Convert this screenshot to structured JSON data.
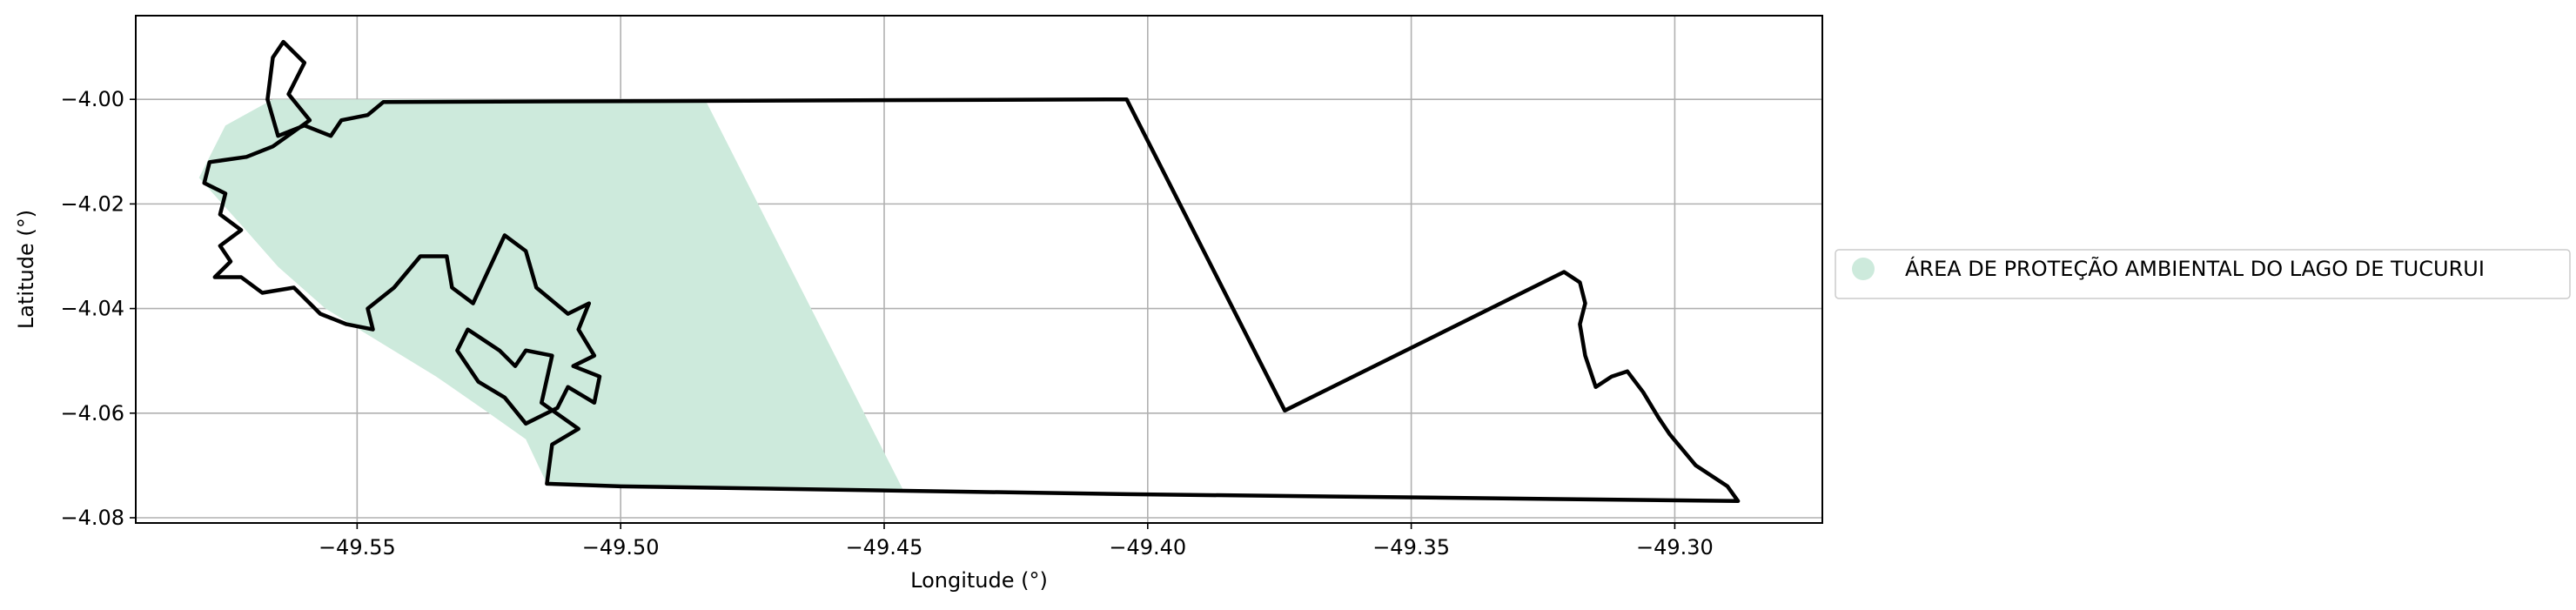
{
  "chart_data": {
    "type": "map",
    "x_axis": {
      "label": "Longitude (°)",
      "range": [
        -49.592,
        -49.272
      ],
      "ticks": [
        -49.55,
        -49.5,
        -49.45,
        -49.4,
        -49.35,
        -49.3
      ],
      "tick_labels": [
        "−49.55",
        "−49.50",
        "−49.45",
        "−49.40",
        "−49.35",
        "−49.30"
      ]
    },
    "y_axis": {
      "label": "Latitude (°)",
      "range": [
        -4.081,
        -3.984
      ],
      "ticks": [
        -4.0,
        -4.02,
        -4.04,
        -4.06,
        -4.08
      ],
      "tick_labels": [
        "−4.00",
        "−4.02",
        "−4.04",
        "−4.06",
        "−4.08"
      ]
    },
    "grid": true,
    "legend": {
      "placement": "right, outside",
      "entries": [
        {
          "label": "ÁREA DE PROTEÇÃO AMBIENTAL DO LAGO DE TUCURUI",
          "color": "#cdeadc",
          "marker": "circle"
        }
      ]
    },
    "fill_color": "#cdeadc",
    "outline_color": "#000000",
    "regions": [
      {
        "name": "ÁREA DE PROTEÇÃO AMBIENTAL DO LAGO DE TUCURUI",
        "shaded_polygon": [
          [
            -49.566,
            -4.0
          ],
          [
            -49.484,
            -4.0
          ],
          [
            -49.4465,
            -4.0745
          ],
          [
            -49.514,
            -4.0735
          ],
          [
            -49.518,
            -4.065
          ],
          [
            -49.525,
            -4.06
          ],
          [
            -49.535,
            -4.053
          ],
          [
            -49.548,
            -4.045
          ],
          [
            -49.556,
            -4.04
          ],
          [
            -49.565,
            -4.032
          ],
          [
            -49.572,
            -4.024
          ],
          [
            -49.58,
            -4.015
          ],
          [
            -49.575,
            -4.005
          ]
        ],
        "boundary": [
          [
            -49.564,
            -3.989
          ],
          [
            -49.56,
            -3.993
          ],
          [
            -49.563,
            -3.999
          ],
          [
            -49.559,
            -4.004
          ],
          [
            -49.566,
            -4.009
          ],
          [
            -49.571,
            -4.011
          ],
          [
            -49.578,
            -4.012
          ],
          [
            -49.579,
            -4.016
          ],
          [
            -49.575,
            -4.018
          ],
          [
            -49.576,
            -4.022
          ],
          [
            -49.572,
            -4.025
          ],
          [
            -49.576,
            -4.028
          ],
          [
            -49.574,
            -4.031
          ],
          [
            -49.577,
            -4.034
          ],
          [
            -49.572,
            -4.034
          ],
          [
            -49.568,
            -4.037
          ],
          [
            -49.562,
            -4.036
          ],
          [
            -49.557,
            -4.041
          ],
          [
            -49.552,
            -4.043
          ],
          [
            -49.547,
            -4.044
          ],
          [
            -49.548,
            -4.04
          ],
          [
            -49.543,
            -4.036
          ],
          [
            -49.538,
            -4.03
          ],
          [
            -49.533,
            -4.03
          ],
          [
            -49.532,
            -4.036
          ],
          [
            -49.528,
            -4.039
          ],
          [
            -49.522,
            -4.026
          ],
          [
            -49.518,
            -4.029
          ],
          [
            -49.516,
            -4.036
          ],
          [
            -49.51,
            -4.041
          ],
          [
            -49.506,
            -4.039
          ],
          [
            -49.508,
            -4.044
          ],
          [
            -49.505,
            -4.049
          ],
          [
            -49.509,
            -4.051
          ],
          [
            -49.504,
            -4.053
          ],
          [
            -49.505,
            -4.058
          ],
          [
            -49.51,
            -4.055
          ],
          [
            -49.512,
            -4.059
          ],
          [
            -49.518,
            -4.062
          ],
          [
            -49.522,
            -4.057
          ],
          [
            -49.527,
            -4.054
          ],
          [
            -49.531,
            -4.048
          ],
          [
            -49.529,
            -4.044
          ],
          [
            -49.523,
            -4.048
          ],
          [
            -49.52,
            -4.051
          ],
          [
            -49.518,
            -4.048
          ],
          [
            -49.513,
            -4.049
          ],
          [
            -49.515,
            -4.058
          ],
          [
            -49.508,
            -4.063
          ],
          [
            -49.513,
            -4.066
          ],
          [
            -49.514,
            -4.0735
          ],
          [
            -49.5,
            -4.074
          ],
          [
            -49.404,
            -4.0755
          ],
          [
            -49.288,
            -4.0768
          ],
          [
            -49.29,
            -4.074
          ],
          [
            -49.296,
            -4.07
          ],
          [
            -49.301,
            -4.064
          ],
          [
            -49.303,
            -4.061
          ],
          [
            -49.306,
            -4.056
          ],
          [
            -49.309,
            -4.052
          ],
          [
            -49.312,
            -4.053
          ],
          [
            -49.315,
            -4.055
          ],
          [
            -49.317,
            -4.049
          ],
          [
            -49.318,
            -4.043
          ],
          [
            -49.317,
            -4.039
          ],
          [
            -49.318,
            -4.035
          ],
          [
            -49.321,
            -4.033
          ],
          [
            -49.374,
            -4.0595
          ],
          [
            -49.404,
            -4.0
          ],
          [
            -49.545,
            -4.0005
          ],
          [
            -49.548,
            -4.003
          ],
          [
            -49.553,
            -4.004
          ],
          [
            -49.555,
            -4.007
          ],
          [
            -49.56,
            -4.005
          ],
          [
            -49.565,
            -4.007
          ],
          [
            -49.567,
            -4.0
          ],
          [
            -49.566,
            -3.992
          ],
          [
            -49.564,
            -3.989
          ]
        ]
      }
    ]
  }
}
